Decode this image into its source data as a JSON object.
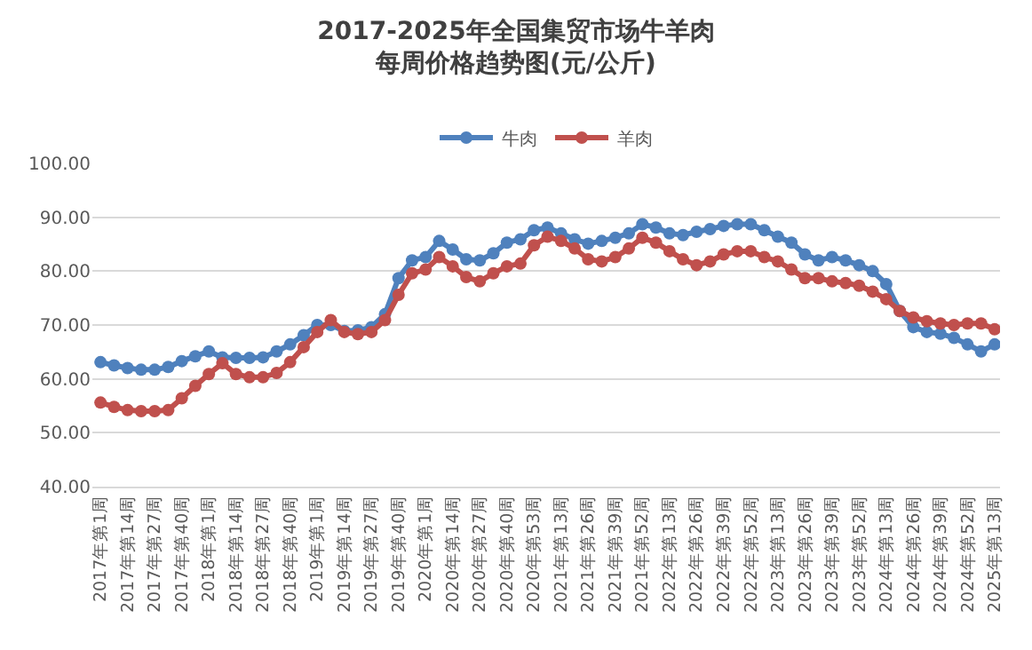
{
  "chart_data": {
    "type": "line",
    "title": "2017-2025年全国集贸市场牛羊肉",
    "subtitle": "每周价格趋势图(元/公斤)",
    "categories": [
      "2017年第1周",
      null,
      "2017年第14周",
      null,
      "2017年第27周",
      null,
      "2017年第40周",
      null,
      "2018年第1周",
      null,
      "2018年第14周",
      null,
      "2018年第27周",
      null,
      "2018年第40周",
      null,
      "2019年第1周",
      null,
      "2019年第14周",
      null,
      "2019年第27周",
      null,
      "2019年第40周",
      null,
      "2020年第1周",
      null,
      "2020年第14周",
      null,
      "2020年第27周",
      null,
      "2020年第40周",
      null,
      "2020年第53周",
      null,
      "2021年第13周",
      null,
      "2021年第26周",
      null,
      "2021年第39周",
      null,
      "2021年第52周",
      null,
      "2022年第13周",
      null,
      "2022年第26周",
      null,
      "2022年第39周",
      null,
      "2022年第52周",
      null,
      "2023年第13周",
      null,
      "2023年第26周",
      null,
      "2023年第39周",
      null,
      "2023年第52周",
      null,
      "2024年第13周",
      null,
      "2024年第26周",
      null,
      "2024年第39周",
      null,
      "2024年第52周",
      null,
      "2025年第13周"
    ],
    "series": [
      {
        "name": "牛肉",
        "color": "#4f81bd",
        "values": [
          63.1,
          62.5,
          62,
          61.7,
          61.7,
          62.2,
          63.3,
          64.2,
          65.1,
          64,
          63.9,
          63.9,
          64,
          65.1,
          66.4,
          68.1,
          70,
          70,
          68.9,
          69,
          69.6,
          72,
          78.7,
          82,
          82.6,
          85.6,
          84,
          82.2,
          82,
          83.3,
          85.3,
          85.9,
          87.6,
          88.1,
          87,
          85.9,
          85.1,
          85.6,
          86.2,
          87,
          88.7,
          88.1,
          87,
          86.7,
          87.3,
          87.8,
          88.4,
          88.7,
          88.7,
          87.6,
          86.4,
          85.3,
          83.1,
          82,
          82.6,
          82,
          81.1,
          80,
          77.6,
          72.6,
          69.6,
          68.7,
          68.4,
          67.6,
          66.4,
          65.1,
          66.4
        ]
      },
      {
        "name": "羊肉",
        "color": "#c0504d",
        "values": [
          55.6,
          54.8,
          54.2,
          54,
          54,
          54.2,
          56.4,
          58.7,
          60.9,
          62.9,
          60.9,
          60.3,
          60.3,
          61.1,
          63.1,
          65.9,
          68.7,
          70.9,
          68.7,
          68.3,
          68.7,
          70.9,
          75.6,
          79.6,
          80.3,
          82.6,
          80.9,
          78.9,
          78.1,
          79.6,
          80.9,
          81.4,
          84.8,
          86.4,
          85.6,
          84.2,
          82.2,
          81.8,
          82.6,
          84.2,
          86.2,
          85.3,
          83.7,
          82.2,
          81.1,
          81.8,
          83.1,
          83.7,
          83.7,
          82.6,
          81.8,
          80.3,
          78.7,
          78.7,
          78.1,
          77.8,
          77.3,
          76.2,
          74.8,
          72.6,
          71.4,
          70.7,
          70.3,
          70,
          70.3,
          70.3,
          69.2
        ]
      }
    ],
    "ylim": [
      40,
      100
    ],
    "yticks": [
      {
        "value": 40,
        "label": "40.00"
      },
      {
        "value": 50,
        "label": "50.00"
      },
      {
        "value": 60,
        "label": "60.00"
      },
      {
        "value": 70,
        "label": "70.00"
      },
      {
        "value": 80,
        "label": "80.00"
      },
      {
        "value": 90,
        "label": "90.00"
      },
      {
        "value": 100,
        "label": "100.00"
      }
    ],
    "grid": "y",
    "legend": "top",
    "marker": "circle",
    "line_style": "solid"
  }
}
